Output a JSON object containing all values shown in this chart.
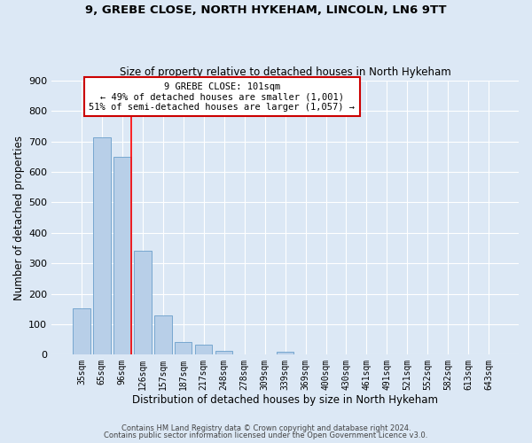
{
  "title_line1": "9, GREBE CLOSE, NORTH HYKEHAM, LINCOLN, LN6 9TT",
  "title_line2": "Size of property relative to detached houses in North Hykeham",
  "xlabel": "Distribution of detached houses by size in North Hykeham",
  "ylabel": "Number of detached properties",
  "footer_line1": "Contains HM Land Registry data © Crown copyright and database right 2024.",
  "footer_line2": "Contains public sector information licensed under the Open Government Licence v3.0.",
  "bar_labels": [
    "35sqm",
    "65sqm",
    "96sqm",
    "126sqm",
    "157sqm",
    "187sqm",
    "217sqm",
    "248sqm",
    "278sqm",
    "309sqm",
    "339sqm",
    "369sqm",
    "400sqm",
    "430sqm",
    "461sqm",
    "491sqm",
    "521sqm",
    "552sqm",
    "582sqm",
    "613sqm",
    "643sqm"
  ],
  "bar_values": [
    152,
    715,
    651,
    340,
    130,
    42,
    32,
    13,
    0,
    0,
    9,
    0,
    0,
    0,
    0,
    0,
    0,
    0,
    0,
    0,
    0
  ],
  "bar_color": "#b8cfe8",
  "bar_edgecolor": "#6a9fcb",
  "bg_color": "#dce8f5",
  "plot_bg_color": "#dce8f5",
  "grid_color": "#ffffff",
  "red_line_bin": 2,
  "annotation_title": "9 GREBE CLOSE: 101sqm",
  "annotation_line1": "← 49% of detached houses are smaller (1,001)",
  "annotation_line2": "51% of semi-detached houses are larger (1,057) →",
  "annotation_box_facecolor": "#ffffff",
  "annotation_box_edgecolor": "#cc0000",
  "ylim": [
    0,
    900
  ],
  "yticks": [
    0,
    100,
    200,
    300,
    400,
    500,
    600,
    700,
    800,
    900
  ]
}
